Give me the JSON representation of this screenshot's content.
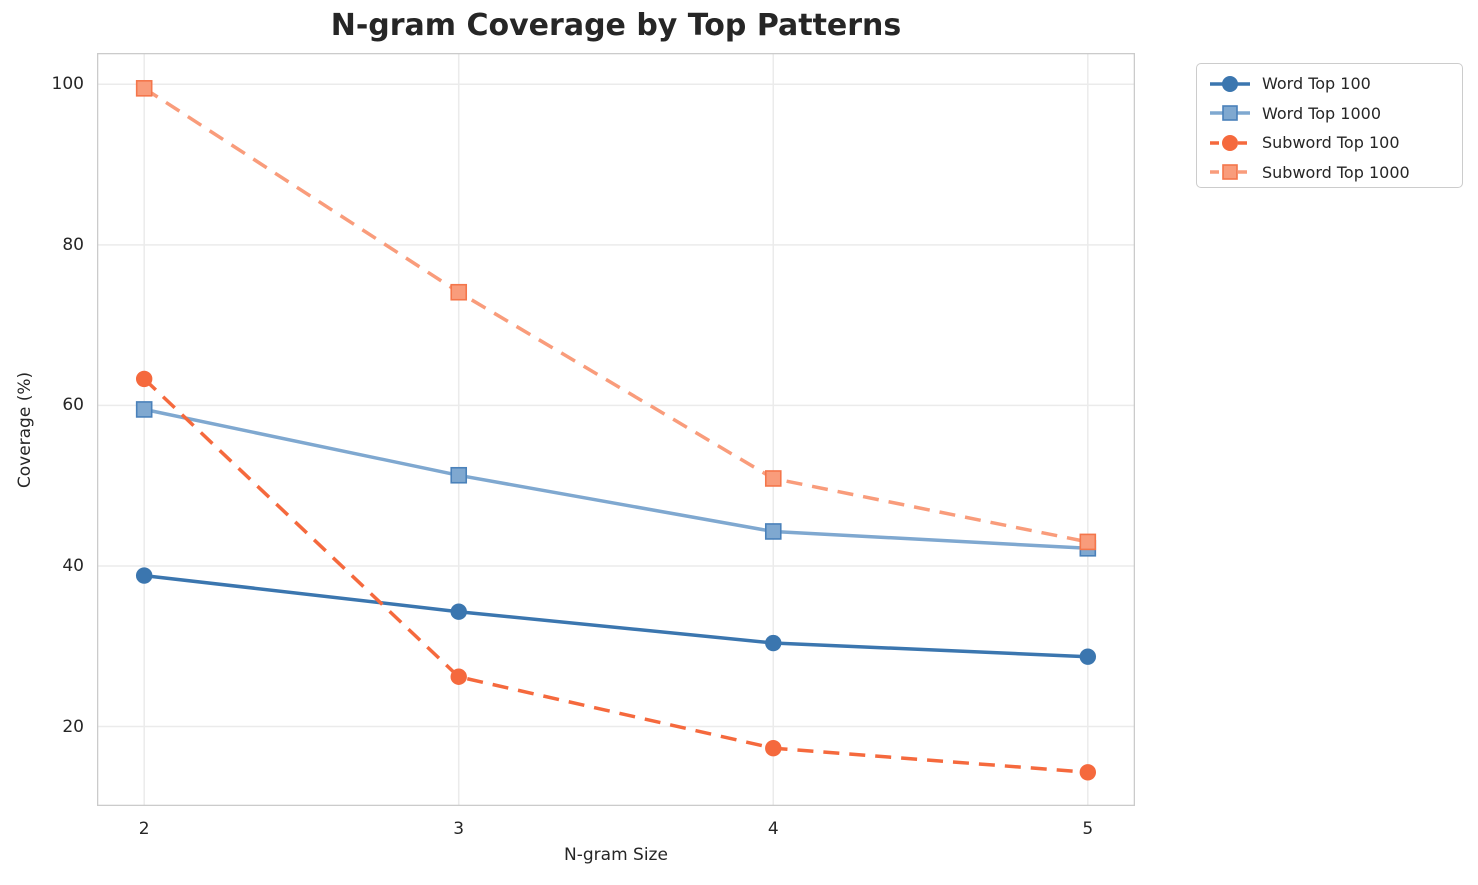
{
  "chart_data": {
    "type": "line",
    "title": "N-gram Coverage by Top Patterns",
    "xlabel": "N-gram Size",
    "ylabel": "Coverage (%)",
    "x": [
      2,
      3,
      4,
      5
    ],
    "series": [
      {
        "name": "Word Top 100",
        "values": [
          38.8,
          34.3,
          30.4,
          28.7
        ],
        "color": "#3B76AF",
        "edge": "#3B76AF",
        "marker": "circle",
        "dashed": false
      },
      {
        "name": "Word Top 1000",
        "values": [
          59.5,
          51.3,
          44.3,
          42.2
        ],
        "color": "#7FA8D0",
        "edge": "#4A81BA",
        "marker": "square",
        "dashed": false
      },
      {
        "name": "Subword Top 100",
        "values": [
          63.3,
          26.2,
          17.3,
          14.3
        ],
        "color": "#F5693D",
        "edge": "#F5693D",
        "marker": "circle",
        "dashed": true
      },
      {
        "name": "Subword Top 1000",
        "values": [
          99.5,
          74.1,
          50.9,
          43.0
        ],
        "color": "#F99C7B",
        "edge": "#F4764B",
        "marker": "square",
        "dashed": true
      }
    ],
    "xticks": [
      "2",
      "3",
      "4",
      "5"
    ],
    "xtick_values": [
      2,
      3,
      4,
      5
    ],
    "yticks": [
      "20",
      "40",
      "60",
      "80",
      "100"
    ],
    "ytick_values": [
      20,
      40,
      60,
      80,
      100
    ],
    "xlim": [
      1.85,
      5.15
    ],
    "ylim": [
      10.1,
      103.9
    ],
    "grid": true,
    "legend_position": "outside upper right",
    "palette": {
      "background": "#ffffff",
      "grid_color": "#ebebeb",
      "spine_color": "#cbcbcb",
      "text_color": "#262626",
      "legend_border": "#cccccc"
    }
  }
}
